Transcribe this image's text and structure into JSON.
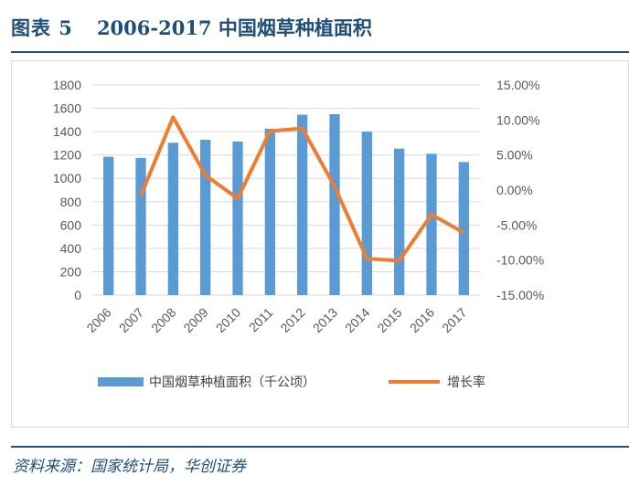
{
  "figure": {
    "label": "图表 5",
    "title": "2006-2017 中国烟草种植面积"
  },
  "source": "资料来源：国家统计局，华创证券",
  "colors": {
    "bar": "#5b9bd5",
    "line": "#ed7d31",
    "title": "#1f4e79",
    "grid": "#d9d9d9",
    "tick": "#595959"
  },
  "chart_data": {
    "type": "bar+line",
    "title": "2006-2017 中国烟草种植面积",
    "categories": [
      "2006",
      "2007",
      "2008",
      "2009",
      "2010",
      "2011",
      "2012",
      "2013",
      "2014",
      "2015",
      "2016",
      "2017"
    ],
    "series": [
      {
        "name": "中国烟草种植面积（千公顷）",
        "type": "bar",
        "axis": "left",
        "values": [
          1185,
          1175,
          1305,
          1330,
          1315,
          1425,
          1545,
          1550,
          1400,
          1255,
          1210,
          1140
        ]
      },
      {
        "name": "增长率",
        "type": "line",
        "axis": "right",
        "values": [
          null,
          -0.8,
          10.4,
          2.1,
          -1.2,
          8.4,
          8.8,
          0.5,
          -9.8,
          -10.1,
          -3.5,
          -6.1
        ]
      }
    ],
    "y_left": {
      "range": [
        0,
        1800
      ],
      "ticks": [
        0,
        200,
        400,
        600,
        800,
        1000,
        1200,
        1400,
        1600,
        1800
      ],
      "tick_labels": [
        "0",
        "200",
        "400",
        "600",
        "800",
        "1000",
        "1200",
        "1400",
        "1600",
        "1800"
      ]
    },
    "y_right": {
      "range": [
        -15,
        15
      ],
      "ticks": [
        -15,
        -10,
        -5,
        0,
        5,
        10,
        15
      ],
      "tick_labels": [
        "-15.00%",
        "-10.00%",
        "-5.00%",
        "0.00%",
        "5.00%",
        "10.00%",
        "15.00%"
      ]
    },
    "grid": true,
    "legend_position": "bottom"
  }
}
